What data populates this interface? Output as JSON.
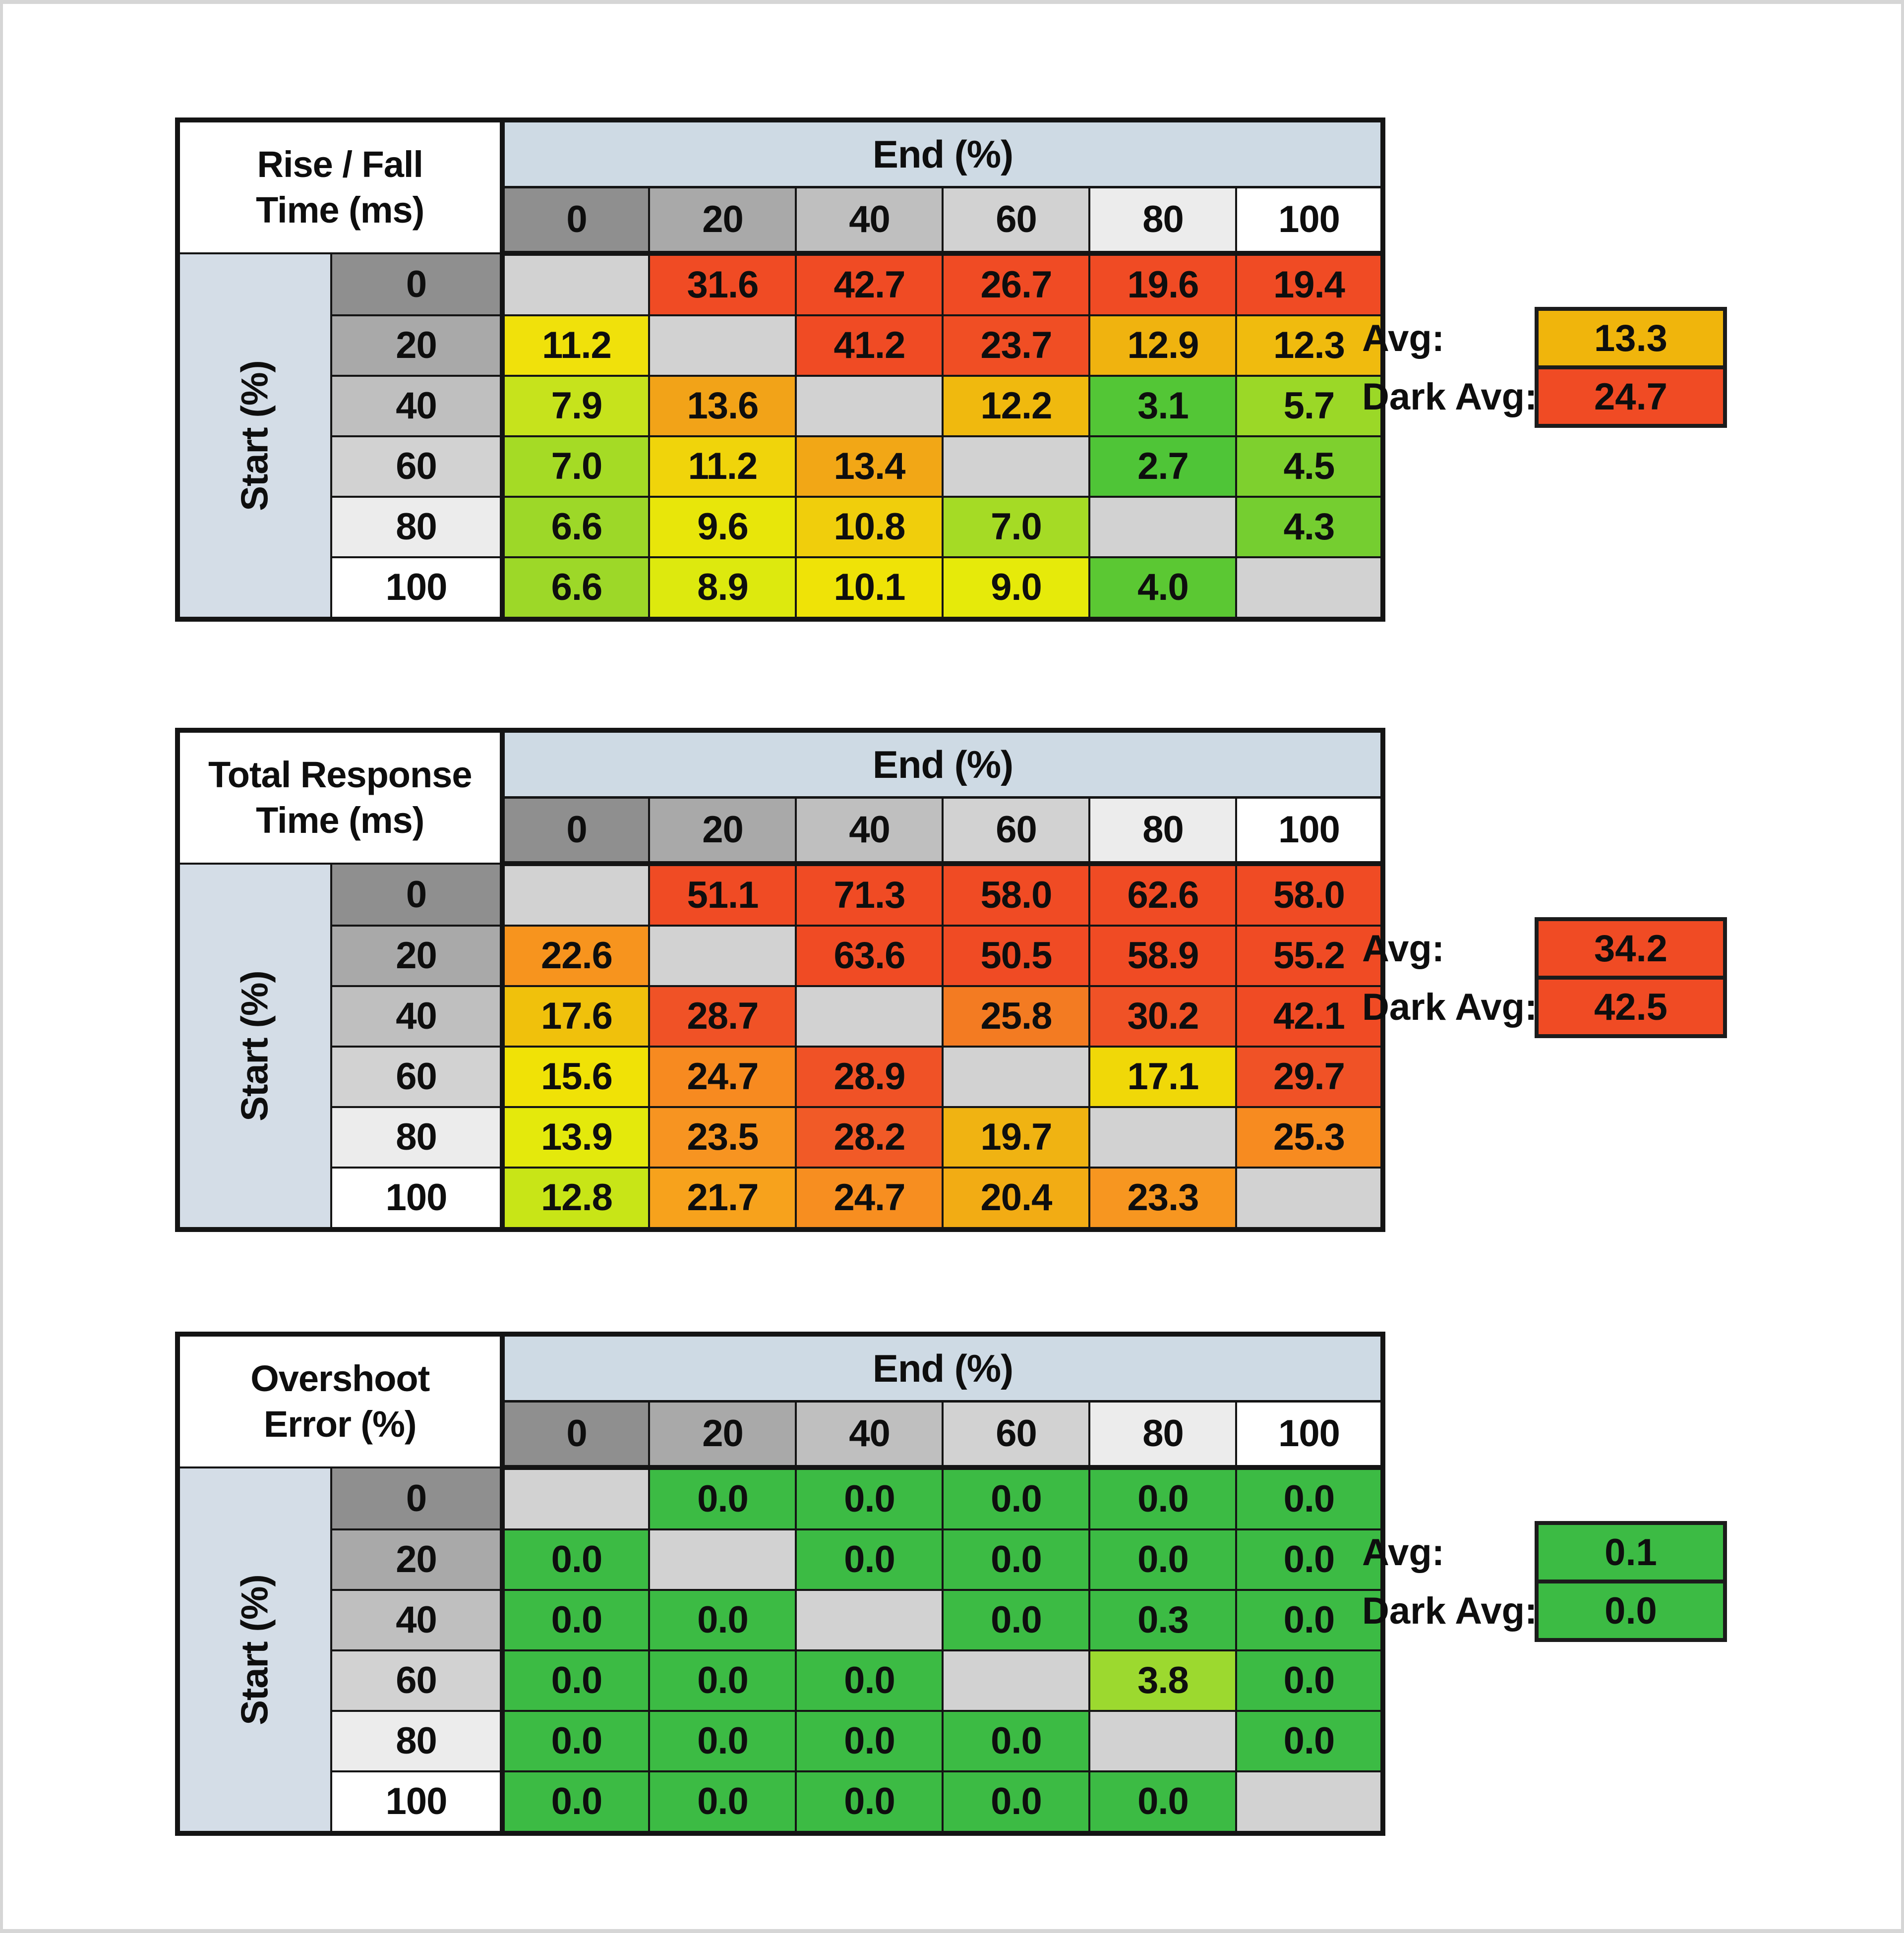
{
  "page": {
    "background": "#FFFFFF",
    "edge_color": "#D6D6D6",
    "grid_line_color": "#141414",
    "diagonal_cell_color": "#D2D2D2",
    "end_band_color": "#CEDAE4",
    "start_band_color": "#D4DDE7",
    "header_grays": [
      "#8F8F8F",
      "#A9A9A9",
      "#BFBFBF",
      "#D2D2D2",
      "#ECECEC",
      "#FFFFFF"
    ]
  },
  "chart_data": [
    {
      "type": "heatmap",
      "title_line1": "Rise / Fall",
      "title_line2": "Time (ms)",
      "x_axis_title": "End (%)",
      "y_axis_title": "Start (%)",
      "x": [
        0,
        20,
        40,
        60,
        80,
        100
      ],
      "y": [
        0,
        20,
        40,
        60,
        80,
        100
      ],
      "values": [
        [
          null,
          31.6,
          42.7,
          26.7,
          19.6,
          19.4
        ],
        [
          11.2,
          null,
          41.2,
          23.7,
          12.9,
          12.3
        ],
        [
          7.9,
          13.6,
          null,
          12.2,
          3.1,
          5.7
        ],
        [
          7.0,
          11.2,
          13.4,
          null,
          2.7,
          4.5
        ],
        [
          6.6,
          9.6,
          10.8,
          7.0,
          null,
          4.3
        ],
        [
          6.6,
          8.9,
          10.1,
          9.0,
          4.0,
          null
        ]
      ],
      "colors": [
        [
          null,
          "#F04B24",
          "#F04B24",
          "#F04B24",
          "#F04B24",
          "#F04B24"
        ],
        [
          "#F0E10B",
          null,
          "#F04B24",
          "#F04E24",
          "#F0B30F",
          "#F0BB0E"
        ],
        [
          "#C6E31C",
          "#F2A318",
          null,
          "#F0B90E",
          "#53C636",
          "#9BD827"
        ],
        [
          "#A5DB25",
          "#F0D40B",
          "#F2A716",
          null,
          "#4FC537",
          "#7ED02E"
        ],
        [
          "#9DD828",
          "#E8E60A",
          "#F0CE0C",
          "#A5DB25",
          null,
          "#75CE30"
        ],
        [
          "#9DD828",
          "#DDE90E",
          "#EFE307",
          "#E6EA0A",
          "#5BC833",
          null
        ]
      ],
      "avg": {
        "label": "Avg:",
        "value": "13.3",
        "color": "#F0B50C"
      },
      "dark_avg": {
        "label": "Dark Avg:",
        "value": "24.7",
        "color": "#F04B24"
      }
    },
    {
      "type": "heatmap",
      "title_line1": "Total Response",
      "title_line2": "Time (ms)",
      "x_axis_title": "End (%)",
      "y_axis_title": "Start (%)",
      "x": [
        0,
        20,
        40,
        60,
        80,
        100
      ],
      "y": [
        0,
        20,
        40,
        60,
        80,
        100
      ],
      "values": [
        [
          null,
          51.1,
          71.3,
          58.0,
          62.6,
          58.0
        ],
        [
          22.6,
          null,
          63.6,
          50.5,
          58.9,
          55.2
        ],
        [
          17.6,
          28.7,
          null,
          25.8,
          30.2,
          42.1
        ],
        [
          15.6,
          24.7,
          28.9,
          null,
          17.1,
          29.7
        ],
        [
          13.9,
          23.5,
          28.2,
          19.7,
          null,
          25.3
        ],
        [
          12.8,
          21.7,
          24.7,
          20.4,
          23.3,
          null
        ]
      ],
      "colors": [
        [
          null,
          "#F04B24",
          "#F04B24",
          "#F04B24",
          "#F04B24",
          "#F04B24"
        ],
        [
          "#F7941E",
          null,
          "#F04B24",
          "#F04B24",
          "#F04B24",
          "#F04B24"
        ],
        [
          "#F0C10C",
          "#F05226",
          null,
          "#F37B22",
          "#F05226",
          "#F04B24"
        ],
        [
          "#F0E206",
          "#F78A20",
          "#F05226",
          null,
          "#F0D808",
          "#F05226"
        ],
        [
          "#E4E90C",
          "#F79421",
          "#F15A27",
          "#F0B312",
          null,
          "#F78B20"
        ],
        [
          "#C8E517",
          "#F7A21C",
          "#F78E20",
          "#F2AC14",
          "#F79620",
          null
        ]
      ],
      "avg": {
        "label": "Avg:",
        "value": "34.2",
        "color": "#F04B24"
      },
      "dark_avg": {
        "label": "Dark Avg:",
        "value": "42.5",
        "color": "#F04B24"
      }
    },
    {
      "type": "heatmap",
      "title_line1": "Overshoot",
      "title_line2": "Error (%)",
      "x_axis_title": "End (%)",
      "y_axis_title": "Start (%)",
      "x": [
        0,
        20,
        40,
        60,
        80,
        100
      ],
      "y": [
        0,
        20,
        40,
        60,
        80,
        100
      ],
      "values": [
        [
          null,
          0.0,
          0.0,
          0.0,
          0.0,
          0.0
        ],
        [
          0.0,
          null,
          0.0,
          0.0,
          0.0,
          0.0
        ],
        [
          0.0,
          0.0,
          null,
          0.0,
          0.3,
          0.0
        ],
        [
          0.0,
          0.0,
          0.0,
          null,
          3.8,
          0.0
        ],
        [
          0.0,
          0.0,
          0.0,
          0.0,
          null,
          0.0
        ],
        [
          0.0,
          0.0,
          0.0,
          0.0,
          0.0,
          null
        ]
      ],
      "colors": [
        [
          null,
          "#3CBB44",
          "#3CBB44",
          "#3CBB44",
          "#3CBB44",
          "#3CBB44"
        ],
        [
          "#3CBB44",
          null,
          "#3CBB44",
          "#3CBB44",
          "#3CBB44",
          "#3CBB44"
        ],
        [
          "#3CBB44",
          "#3CBB44",
          null,
          "#3CBB44",
          "#3CBB44",
          "#3CBB44"
        ],
        [
          "#3CBB44",
          "#3CBB44",
          "#3CBB44",
          null,
          "#9CD92F",
          "#3CBB44"
        ],
        [
          "#3CBB44",
          "#3CBB44",
          "#3CBB44",
          "#3CBB44",
          null,
          "#3CBB44"
        ],
        [
          "#3CBB44",
          "#3CBB44",
          "#3CBB44",
          "#3CBB44",
          "#3CBB44",
          null
        ]
      ],
      "avg": {
        "label": "Avg:",
        "value": "0.1",
        "color": "#3CBB44"
      },
      "dark_avg": {
        "label": "Dark Avg:",
        "value": "0.0",
        "color": "#3CBB44"
      }
    }
  ]
}
